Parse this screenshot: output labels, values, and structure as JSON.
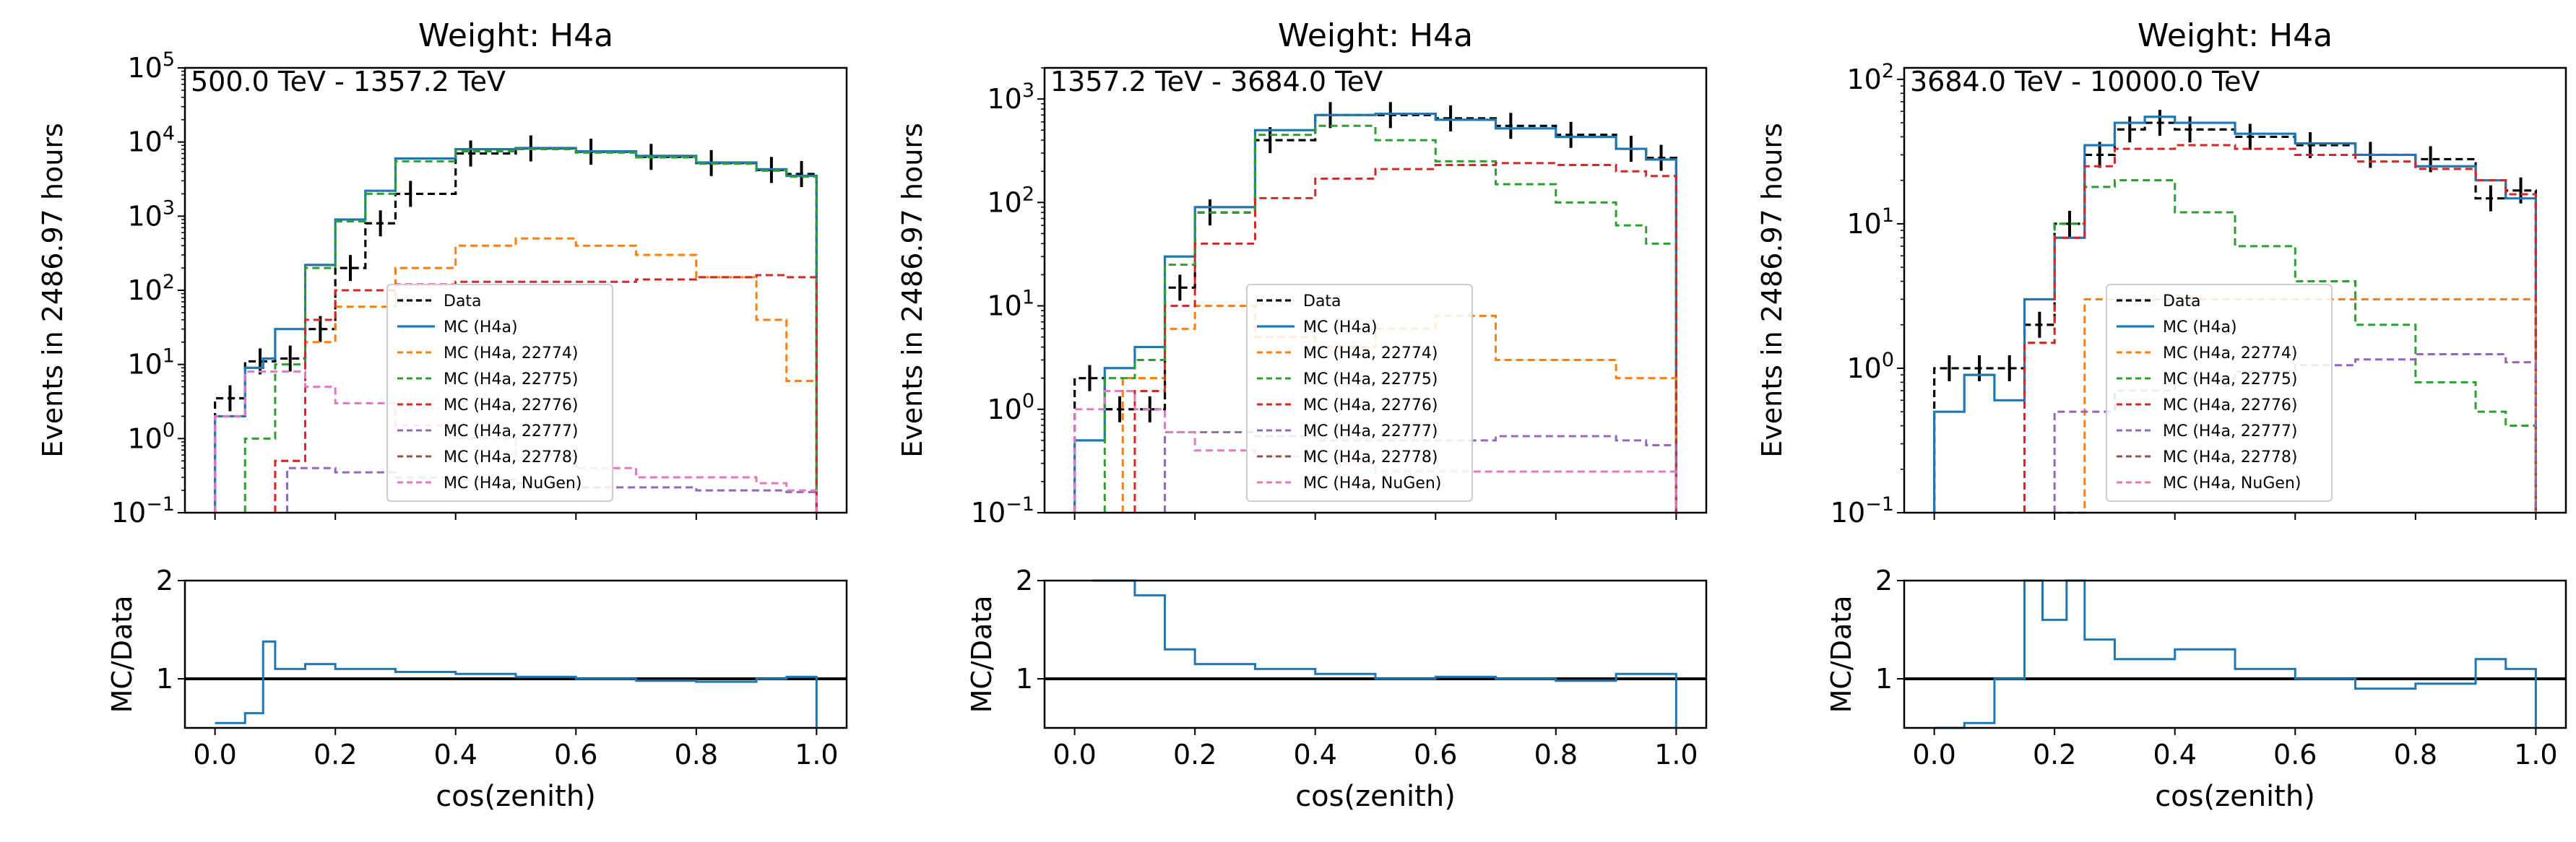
{
  "chart_data": [
    {
      "type": "line",
      "title": "Weight: H4a",
      "annotation": "500.0 TeV - 1357.2 TeV",
      "ylabel": "Events in 2486.97 hours",
      "xlabel": "",
      "yscale": "log",
      "ylim": [
        0.1,
        100000
      ],
      "xlim": [
        -0.05,
        1.05
      ],
      "y_ticks": [
        0.1,
        1,
        10,
        100,
        1000,
        10000,
        100000
      ],
      "y_tick_labels": [
        {
          "base": "10",
          "exp": "−1"
        },
        {
          "base": "10",
          "exp": "0"
        },
        {
          "base": "10",
          "exp": "1"
        },
        {
          "base": "10",
          "exp": "2"
        },
        {
          "base": "10",
          "exp": "3"
        },
        {
          "base": "10",
          "exp": "4"
        },
        {
          "base": "10",
          "exp": "5"
        }
      ],
      "legend": {
        "position": "center",
        "entries": [
          "Data",
          "MC (H4a)",
          "MC (H4a, 22774)",
          "MC (H4a, 22775)",
          "MC (H4a, 22776)",
          "MC (H4a, 22777)",
          "MC (H4a, 22778)",
          "MC (H4a, NuGen)"
        ]
      },
      "series": [
        {
          "name": "Data",
          "x": [
            0.0,
            0.05,
            0.1,
            0.15,
            0.2,
            0.25,
            0.3,
            0.4,
            0.5,
            0.6,
            0.7,
            0.8,
            0.9,
            0.95
          ],
          "values": [
            3.5,
            11,
            12,
            30,
            200,
            800,
            2000,
            7000,
            8200,
            7400,
            6300,
            5200,
            4200,
            3700
          ]
        },
        {
          "name": "MC (H4a)",
          "x": [
            0.0,
            0.05,
            0.08,
            0.1,
            0.15,
            0.2,
            0.25,
            0.3,
            0.4,
            0.5,
            0.6,
            0.7,
            0.8,
            0.9,
            0.95
          ],
          "values": [
            2,
            9,
            12,
            30,
            220,
            900,
            2200,
            6000,
            8000,
            8300,
            7500,
            6500,
            5300,
            4300,
            3500
          ]
        },
        {
          "name": "MC (H4a, 22774)",
          "x": [
            0.1,
            0.15,
            0.2,
            0.3,
            0.4,
            0.5,
            0.6,
            0.7,
            0.8,
            0.9,
            0.95
          ],
          "values": [
            0.5,
            20,
            60,
            200,
            400,
            500,
            400,
            300,
            150,
            40,
            6
          ]
        },
        {
          "name": "MC (H4a, 22775)",
          "x": [
            0.05,
            0.1,
            0.15,
            0.2,
            0.25,
            0.3,
            0.4,
            0.5,
            0.6,
            0.7,
            0.8,
            0.9,
            0.95
          ],
          "values": [
            1,
            10,
            200,
            850,
            2000,
            5500,
            7500,
            8000,
            7200,
            6200,
            5100,
            4100,
            3400
          ]
        },
        {
          "name": "MC (H4a, 22776)",
          "x": [
            0.1,
            0.15,
            0.2,
            0.3,
            0.4,
            0.5,
            0.6,
            0.7,
            0.8,
            0.9,
            0.95
          ],
          "values": [
            0.5,
            40,
            100,
            120,
            130,
            130,
            130,
            140,
            150,
            160,
            150
          ]
        },
        {
          "name": "MC (H4a, 22777)",
          "x": [
            0.12,
            0.2,
            0.3,
            0.4,
            0.5,
            0.6,
            0.7,
            0.8,
            0.9,
            0.95
          ],
          "values": [
            0.4,
            0.35,
            0.3,
            0.28,
            0.25,
            0.22,
            0.22,
            0.2,
            0.2,
            0.19
          ]
        },
        {
          "name": "MC (H4a, 22778)",
          "x": [],
          "values": []
        },
        {
          "name": "MC (H4a, NuGen)",
          "x": [
            0.0,
            0.05,
            0.1,
            0.15,
            0.2,
            0.3,
            0.4,
            0.5,
            0.6,
            0.7,
            0.8,
            0.9,
            0.95
          ],
          "values": [
            2,
            8,
            8,
            5,
            3,
            1.5,
            1,
            0.6,
            0.4,
            0.3,
            0.3,
            0.25,
            0.2
          ]
        }
      ]
    },
    {
      "type": "line",
      "title": "Weight: H4a",
      "annotation": "1357.2 TeV - 3684.0 TeV",
      "ylabel": "Events in 2486.97 hours",
      "xlabel": "",
      "yscale": "log",
      "ylim": [
        0.1,
        2000
      ],
      "xlim": [
        -0.05,
        1.05
      ],
      "y_ticks": [
        0.1,
        1,
        10,
        100,
        1000
      ],
      "y_tick_labels": [
        {
          "base": "10",
          "exp": "−1"
        },
        {
          "base": "10",
          "exp": "0"
        },
        {
          "base": "10",
          "exp": "1"
        },
        {
          "base": "10",
          "exp": "2"
        },
        {
          "base": "10",
          "exp": "3"
        }
      ],
      "legend": {
        "position": "lower-center",
        "entries": [
          "Data",
          "MC (H4a)",
          "MC (H4a, 22774)",
          "MC (H4a, 22775)",
          "MC (H4a, 22776)",
          "MC (H4a, 22777)",
          "MC (H4a, 22778)",
          "MC (H4a, NuGen)"
        ]
      },
      "series": [
        {
          "name": "Data",
          "x": [
            0.0,
            0.05,
            0.1,
            0.15,
            0.2,
            0.3,
            0.4,
            0.5,
            0.6,
            0.7,
            0.8,
            0.9,
            0.95
          ],
          "values": [
            2,
            1,
            1,
            15,
            80,
            400,
            700,
            700,
            650,
            550,
            450,
            330,
            270
          ]
        },
        {
          "name": "MC (H4a)",
          "x": [
            0.0,
            0.05,
            0.1,
            0.15,
            0.2,
            0.3,
            0.4,
            0.5,
            0.6,
            0.7,
            0.8,
            0.9,
            0.95
          ],
          "values": [
            0.5,
            2.5,
            4,
            30,
            90,
            500,
            700,
            720,
            630,
            520,
            430,
            330,
            260
          ]
        },
        {
          "name": "MC (H4a, 22774)",
          "x": [
            0.08,
            0.15,
            0.2,
            0.3,
            0.4,
            0.5,
            0.6,
            0.7,
            0.8,
            0.9
          ],
          "values": [
            2,
            6,
            10,
            5,
            4,
            6,
            8,
            3,
            3,
            2
          ]
        },
        {
          "name": "MC (H4a, 22775)",
          "x": [
            0.05,
            0.1,
            0.15,
            0.2,
            0.3,
            0.4,
            0.5,
            0.6,
            0.7,
            0.8,
            0.9,
            0.95
          ],
          "values": [
            2,
            3,
            25,
            80,
            450,
            550,
            400,
            250,
            150,
            100,
            60,
            40
          ]
        },
        {
          "name": "MC (H4a, 22776)",
          "x": [
            0.1,
            0.15,
            0.2,
            0.3,
            0.4,
            0.5,
            0.6,
            0.7,
            0.8,
            0.9,
            0.95
          ],
          "values": [
            1.5,
            10,
            40,
            110,
            170,
            210,
            230,
            240,
            230,
            200,
            180
          ]
        },
        {
          "name": "MC (H4a, 22777)",
          "x": [
            0.15,
            0.2,
            0.3,
            0.4,
            0.5,
            0.6,
            0.7,
            0.8,
            0.9,
            0.95
          ],
          "values": [
            0.6,
            0.6,
            0.55,
            0.5,
            0.5,
            0.5,
            0.55,
            0.55,
            0.5,
            0.45
          ]
        },
        {
          "name": "MC (H4a, 22778)",
          "x": [],
          "values": []
        },
        {
          "name": "MC (H4a, NuGen)",
          "x": [
            0.0,
            0.05,
            0.1,
            0.15,
            0.2,
            0.3,
            0.4,
            0.5
          ],
          "values": [
            1,
            1.5,
            1,
            0.6,
            0.4,
            0.35,
            0.3,
            0.25
          ]
        }
      ]
    },
    {
      "type": "line",
      "title": "Weight: H4a",
      "annotation": "3684.0 TeV - 10000.0 TeV",
      "ylabel": "Events in 2486.97 hours",
      "xlabel": "",
      "yscale": "log",
      "ylim": [
        0.1,
        120
      ],
      "xlim": [
        -0.05,
        1.05
      ],
      "y_ticks": [
        0.1,
        1,
        10,
        100
      ],
      "y_tick_labels": [
        {
          "base": "10",
          "exp": "−1"
        },
        {
          "base": "10",
          "exp": "0"
        },
        {
          "base": "10",
          "exp": "1"
        },
        {
          "base": "10",
          "exp": "2"
        }
      ],
      "legend": {
        "position": "lower-center",
        "entries": [
          "Data",
          "MC (H4a)",
          "MC (H4a, 22774)",
          "MC (H4a, 22775)",
          "MC (H4a, 22776)",
          "MC (H4a, 22777)",
          "MC (H4a, 22778)",
          "MC (H4a, NuGen)"
        ]
      },
      "series": [
        {
          "name": "Data",
          "x": [
            0.0,
            0.05,
            0.1,
            0.15,
            0.2,
            0.25,
            0.3,
            0.35,
            0.4,
            0.5,
            0.6,
            0.7,
            0.8,
            0.9,
            0.95
          ],
          "values": [
            1,
            1,
            1,
            2,
            10,
            30,
            45,
            50,
            45,
            40,
            35,
            30,
            28,
            15,
            17
          ]
        },
        {
          "name": "MC (H4a)",
          "x": [
            0.0,
            0.05,
            0.1,
            0.15,
            0.2,
            0.25,
            0.3,
            0.35,
            0.4,
            0.5,
            0.6,
            0.7,
            0.8,
            0.9,
            0.95
          ],
          "values": [
            0.5,
            0.9,
            0.6,
            3,
            8,
            35,
            50,
            55,
            50,
            42,
            36,
            30,
            25,
            20,
            15
          ]
        },
        {
          "name": "MC (H4a, 22774)",
          "x": [
            0.2,
            0.25
          ],
          "values": [
            0.1,
            3
          ]
        },
        {
          "name": "MC (H4a, 22775)",
          "x": [
            0.15,
            0.2,
            0.25,
            0.3,
            0.4,
            0.5,
            0.6,
            0.7,
            0.8,
            0.9,
            0.95
          ],
          "values": [
            1.5,
            10,
            18,
            20,
            12,
            7,
            4,
            2,
            0.8,
            0.5,
            0.4
          ]
        },
        {
          "name": "MC (H4a, 22776)",
          "x": [
            0.15,
            0.2,
            0.25,
            0.3,
            0.4,
            0.5,
            0.6,
            0.7,
            0.8,
            0.9,
            0.95
          ],
          "values": [
            1.5,
            8,
            25,
            33,
            35,
            33,
            30,
            27,
            24,
            20,
            16
          ]
        },
        {
          "name": "MC (H4a, 22777)",
          "x": [
            0.2,
            0.3,
            0.4,
            0.5,
            0.6,
            0.7,
            0.8,
            0.9,
            0.95
          ],
          "values": [
            0.5,
            0.7,
            0.85,
            0.95,
            1.05,
            1.15,
            1.25,
            1.25,
            1.1
          ]
        },
        {
          "name": "MC (H4a, 22778)",
          "x": [],
          "values": []
        },
        {
          "name": "MC (H4a, NuGen)",
          "x": [],
          "values": []
        }
      ]
    },
    {
      "type": "line",
      "title": "",
      "xlabel": "cos(zenith)",
      "ylabel": "MC/Data",
      "ylim": [
        0.5,
        2
      ],
      "xlim": [
        -0.05,
        1.05
      ],
      "y_ticks": [
        1,
        2
      ],
      "y_tick_labels": [
        "1",
        "2"
      ],
      "x_ticks": [
        0.0,
        0.2,
        0.4,
        0.6,
        0.8,
        1.0
      ],
      "x_tick_labels": [
        "0.0",
        "0.2",
        "0.4",
        "0.6",
        "0.8",
        "1.0"
      ],
      "series": [
        {
          "name": "MC (H4a)",
          "x": [
            0.0,
            0.05,
            0.08,
            0.1,
            0.15,
            0.2,
            0.3,
            0.4,
            0.5,
            0.6,
            0.7,
            0.8,
            0.9,
            0.95
          ],
          "values": [
            0.55,
            0.65,
            1.38,
            1.1,
            1.15,
            1.1,
            1.07,
            1.05,
            1.02,
            1.0,
            0.98,
            0.97,
            1.0,
            1.02
          ]
        }
      ]
    },
    {
      "type": "line",
      "title": "",
      "xlabel": "cos(zenith)",
      "ylabel": "MC/Data",
      "ylim": [
        0.5,
        2
      ],
      "xlim": [
        -0.05,
        1.05
      ],
      "y_ticks": [
        1,
        2
      ],
      "y_tick_labels": [
        "1",
        "2"
      ],
      "x_ticks": [
        0.0,
        0.2,
        0.4,
        0.6,
        0.8,
        1.0
      ],
      "x_tick_labels": [
        "0.0",
        "0.2",
        "0.4",
        "0.6",
        "0.8",
        "1.0"
      ],
      "series": [
        {
          "name": "MC (H4a)",
          "x": [
            0.03,
            0.05,
            0.1,
            0.15,
            0.2,
            0.3,
            0.4,
            0.5,
            0.6,
            0.7,
            0.8,
            0.9,
            0.95
          ],
          "values": [
            2,
            2,
            1.85,
            1.3,
            1.15,
            1.1,
            1.05,
            1.0,
            1.02,
            1.0,
            0.98,
            1.05,
            1.05
          ]
        }
      ]
    },
    {
      "type": "line",
      "title": "",
      "xlabel": "cos(zenith)",
      "ylabel": "MC/Data",
      "ylim": [
        0.5,
        2
      ],
      "xlim": [
        -0.05,
        1.05
      ],
      "y_ticks": [
        1,
        2
      ],
      "y_tick_labels": [
        "1",
        "2"
      ],
      "x_ticks": [
        0.0,
        0.2,
        0.4,
        0.6,
        0.8,
        1.0
      ],
      "x_tick_labels": [
        "0.0",
        "0.2",
        "0.4",
        "0.6",
        "0.8",
        "1.0"
      ],
      "series": [
        {
          "name": "MC (H4a)",
          "x": [
            0.0,
            0.05,
            0.1,
            0.15,
            0.18,
            0.22,
            0.25,
            0.3,
            0.4,
            0.5,
            0.6,
            0.7,
            0.8,
            0.9,
            0.95
          ],
          "values": [
            0.5,
            0.55,
            1.0,
            2.0,
            1.6,
            2.0,
            1.4,
            1.2,
            1.3,
            1.1,
            1.0,
            0.9,
            0.95,
            1.2,
            1.1
          ]
        }
      ]
    }
  ],
  "colors": {
    "Data": "#000000",
    "MC (H4a)": "#1f77b4",
    "MC (H4a, 22774)": "#ff7f0e",
    "MC (H4a, 22775)": "#2ca02c",
    "MC (H4a, 22776)": "#d62728",
    "MC (H4a, 22777)": "#9467bd",
    "MC (H4a, 22778)": "#8c564b",
    "MC (H4a, NuGen)": "#e377c2"
  }
}
